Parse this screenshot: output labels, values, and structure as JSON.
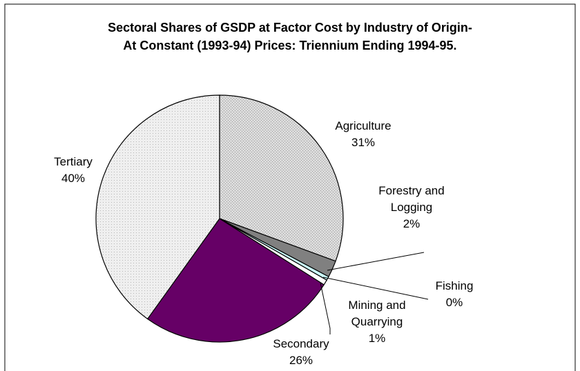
{
  "chart_data": {
    "type": "pie",
    "title": "Sectoral Shares of GSDP at Factor Cost by Industry of Origin-",
    "subtitle": "At Constant (1993-94) Prices: Triennium Ending 1994-95.",
    "slices": [
      {
        "label": "Agriculture",
        "value": 30.6,
        "pct_label": "31%",
        "color": "#d9d9d9",
        "pattern": "dots"
      },
      {
        "label": "Forestry and Logging",
        "value": 2.2,
        "pct_label": "2%",
        "color": "#808080",
        "pattern": "solid"
      },
      {
        "label": "Fishing",
        "value": 0.5,
        "pct_label": "0%",
        "color": "#ccffff",
        "pattern": "solid"
      },
      {
        "label": "Mining and Quarrying",
        "value": 0.7,
        "pct_label": "1%",
        "color": "#ffffff",
        "pattern": "solid"
      },
      {
        "label": "Secondary",
        "value": 25.9,
        "pct_label": "26%",
        "color": "#660066",
        "pattern": "solid"
      },
      {
        "label": "Tertiary",
        "value": 40.1,
        "pct_label": "40%",
        "color": "#ebebeb",
        "pattern": "dots"
      }
    ]
  }
}
